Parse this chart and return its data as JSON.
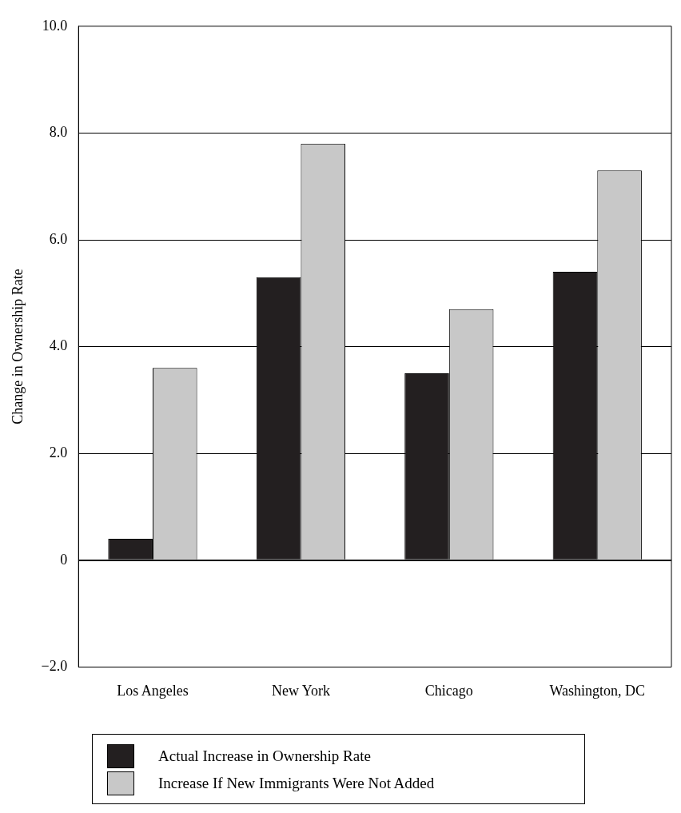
{
  "chart_data": {
    "type": "bar",
    "ylabel": "Change in Ownership Rate",
    "categories": [
      "Los Angeles",
      "New York",
      "Chicago",
      "Washington, DC"
    ],
    "series": [
      {
        "name": "Actual Increase in Ownership Rate",
        "color": "#231f20",
        "values": [
          0.4,
          5.3,
          3.5,
          5.4
        ]
      },
      {
        "name": "Increase If New Immigrants Were Not Added",
        "color": "#c8c8c8",
        "values": [
          3.6,
          7.8,
          4.7,
          7.3
        ]
      }
    ],
    "ylim": [
      -2,
      10
    ],
    "yticks": [
      {
        "value": -2,
        "label": "−2.0"
      },
      {
        "value": 0,
        "label": "0"
      },
      {
        "value": 2,
        "label": "2.0"
      },
      {
        "value": 4,
        "label": "4.0"
      },
      {
        "value": 6,
        "label": "6.0"
      },
      {
        "value": 8,
        "label": "8.0"
      },
      {
        "value": 10,
        "label": "10.0"
      }
    ],
    "grid": "y",
    "legend": "bottom"
  }
}
